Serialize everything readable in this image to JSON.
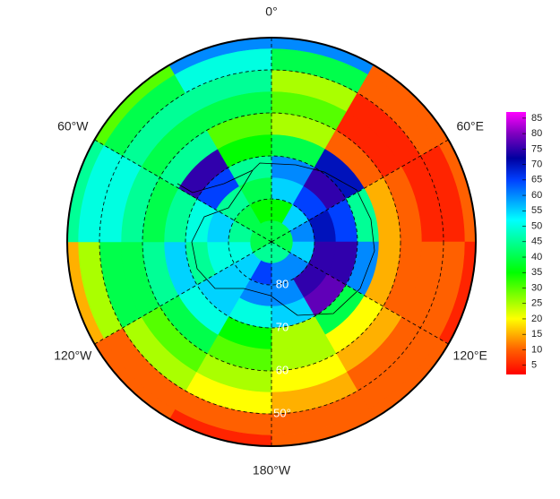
{
  "map_data": {
    "type": "polar-heatmap",
    "lat_edges": [
      90,
      85,
      80,
      75,
      70,
      65,
      60,
      55,
      50,
      45,
      42.5
    ],
    "lon_edges": [
      0,
      30,
      60,
      90,
      120,
      150,
      180,
      210,
      240,
      270,
      300,
      330,
      360
    ],
    "values": [
      [
        40,
        40,
        40,
        40,
        45,
        45,
        45,
        45,
        40,
        40,
        40,
        40
      ],
      [
        35,
        55,
        60,
        55,
        60,
        60,
        65,
        55,
        50,
        45,
        40,
        35
      ],
      [
        55,
        65,
        70,
        75,
        75,
        60,
        60,
        55,
        50,
        55,
        45,
        40
      ],
      [
        60,
        75,
        65,
        75,
        78,
        55,
        50,
        55,
        45,
        50,
        65,
        45
      ],
      [
        40,
        70,
        45,
        60,
        40,
        25,
        35,
        50,
        55,
        45,
        75,
        35
      ],
      [
        25,
        10,
        15,
        15,
        20,
        25,
        30,
        40,
        45,
        40,
        45,
        30
      ],
      [
        30,
        5,
        10,
        10,
        15,
        20,
        25,
        30,
        40,
        45,
        40,
        40
      ],
      [
        25,
        5,
        5,
        10,
        10,
        15,
        20,
        25,
        40,
        50,
        45,
        45
      ],
      [
        40,
        10,
        5,
        10,
        10,
        10,
        10,
        10,
        25,
        50,
        40,
        50
      ],
      [
        60,
        10,
        10,
        5,
        10,
        10,
        5,
        10,
        15,
        45,
        30,
        60
      ]
    ],
    "longitude_labels": [
      {
        "value": 0,
        "label": "0°"
      },
      {
        "value": 60,
        "label": "60°E"
      },
      {
        "value": 120,
        "label": "120°E"
      },
      {
        "value": 180,
        "label": "180°W"
      },
      {
        "value": 240,
        "label": "120°W"
      },
      {
        "value": 300,
        "label": "60°W"
      }
    ],
    "latitude_labels": [
      {
        "value": 80,
        "label": "80"
      },
      {
        "value": 70,
        "label": "70"
      },
      {
        "value": 60,
        "label": "60"
      },
      {
        "value": 50,
        "label": "50°"
      }
    ],
    "colorbar": {
      "clim": [
        2,
        87
      ],
      "ticks": [
        5,
        10,
        15,
        20,
        25,
        30,
        35,
        40,
        45,
        50,
        55,
        60,
        65,
        70,
        75,
        80,
        85
      ],
      "colormap": [
        [
          2,
          "#ff0000"
        ],
        [
          10,
          "#ff6000"
        ],
        [
          20,
          "#ffff00"
        ],
        [
          35,
          "#00ff00"
        ],
        [
          52,
          "#00ffff"
        ],
        [
          65,
          "#0040ff"
        ],
        [
          72,
          "#0000a0"
        ],
        [
          80,
          "#8000c0"
        ],
        [
          87,
          "#ff00ff"
        ]
      ]
    }
  }
}
